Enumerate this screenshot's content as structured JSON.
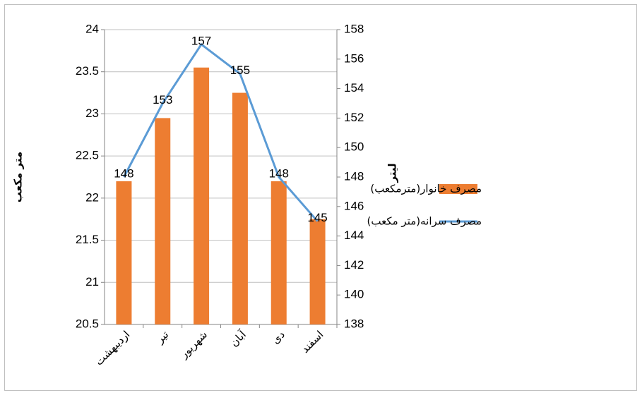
{
  "chart_data": {
    "type": "bar",
    "categories": [
      "اردیبهشت",
      "تیر",
      "شهریور",
      "آبان",
      "دی",
      "اسفند"
    ],
    "series": [
      {
        "name": "مصرف خانوار(مترمکعب)",
        "type": "bar",
        "color": "#ed7d31",
        "values": [
          22.2,
          22.95,
          23.55,
          23.25,
          22.2,
          21.75
        ]
      },
      {
        "name": "مصرف سرانه(متر مکعب)",
        "type": "line",
        "axis": "y2",
        "color": "#5b9bd5",
        "values": [
          148,
          153,
          157,
          155,
          148,
          145
        ]
      }
    ],
    "ylabel": "متر مکعب",
    "y2label": "لیتر",
    "ylim": [
      20.5,
      24
    ],
    "yticks": [
      20.5,
      21,
      21.5,
      22,
      22.5,
      23,
      23.5,
      24
    ],
    "y2lim": [
      138,
      158
    ],
    "y2ticks": [
      138,
      140,
      142,
      144,
      146,
      148,
      150,
      152,
      154,
      156,
      158
    ],
    "grid": true,
    "legend": "right"
  }
}
